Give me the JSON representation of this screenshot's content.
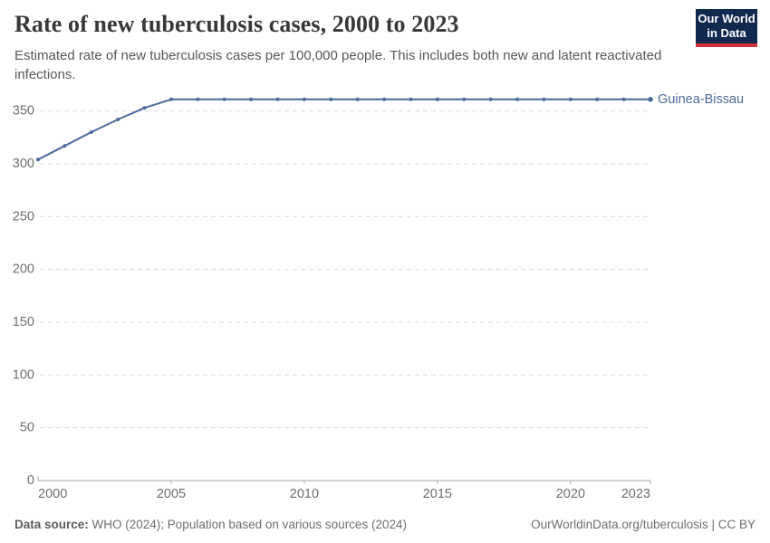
{
  "header": {
    "title": "Rate of new tuberculosis cases, 2000 to 2023",
    "subtitle": "Estimated rate of new tuberculosis cases per 100,000 people. This includes both new and latent reactivated infections.",
    "logo_line1": "Our World",
    "logo_line2": "in Data",
    "logo_bg_color": "#12294f",
    "logo_bar_color": "#cd323d"
  },
  "chart_data": {
    "type": "line",
    "title": "Rate of new tuberculosis cases, 2000 to 2023",
    "xlabel": "",
    "ylabel": "",
    "x": [
      2000,
      2001,
      2002,
      2003,
      2004,
      2005,
      2006,
      2007,
      2008,
      2009,
      2010,
      2011,
      2012,
      2013,
      2014,
      2015,
      2016,
      2017,
      2018,
      2019,
      2020,
      2021,
      2022,
      2023
    ],
    "series": [
      {
        "name": "Guinea-Bissau",
        "color": "#4C6A9C",
        "values": [
          304,
          317,
          330,
          342,
          353,
          361,
          361,
          361,
          361,
          361,
          361,
          361,
          361,
          361,
          361,
          361,
          361,
          361,
          361,
          361,
          361,
          361,
          361,
          361
        ]
      }
    ],
    "x_ticks": [
      2000,
      2005,
      2010,
      2015,
      2020,
      2023
    ],
    "y_ticks": [
      0,
      50,
      100,
      150,
      200,
      250,
      300,
      350
    ],
    "ylim": [
      0,
      385
    ],
    "xlim": [
      2000,
      2023
    ],
    "grid": "horizontal-dashed",
    "legend_position": "right-of-line-end",
    "colors": {
      "gridline": "#dcdcdc",
      "axis_line": "#a1a1a1",
      "tick_mark": "#b3b3b3",
      "tick_label": "#6e6e6e"
    }
  },
  "footer": {
    "datasource_label": "Data source:",
    "datasource_text": " WHO (2024); Population based on various sources (2024)",
    "link_text": "OurWorldinData.org/tuberculosis | CC BY"
  }
}
